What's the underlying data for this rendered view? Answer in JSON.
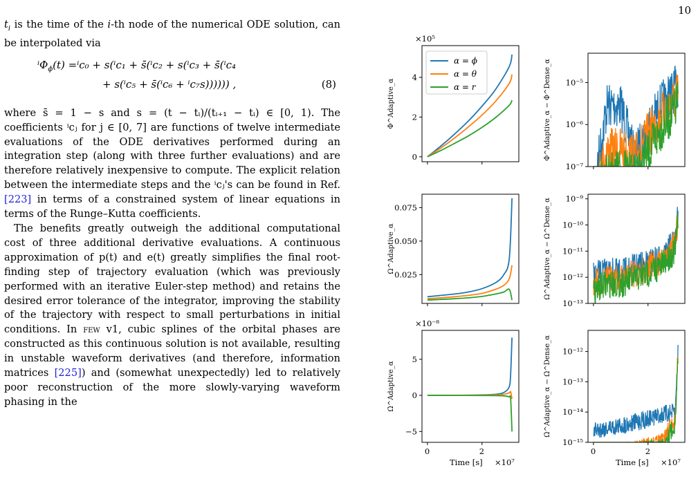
{
  "page_number": "10",
  "text": {
    "p1_a": "t",
    "p1_b": "i",
    "p1_c": " is the time of the ",
    "p1_d": "i",
    "p1_e": "-th node of the numerical ODE solution, can be interpolated via",
    "eq_line1": "ⁱΦ",
    "eq_line1_sub": "ϕ",
    "eq_line1_rest": "(t) =ⁱc₀ + s(ⁱc₁ + s̄(ⁱc₂ + s(ⁱc₃ + s̄(ⁱc₄",
    "eq_line2": "+ s(ⁱc₅ + s̄(ⁱc₆ + ⁱc₇s)))))) ,",
    "eq_number": "(8)",
    "p2": "where s̄ = 1 − s and s = (t − tᵢ)/(tᵢ₊₁ − tᵢ) ∈ [0, 1). The coefficients ⁱcⱼ for j ∈ [0, 7] are functions of twelve intermediate evaluations of the ODE derivatives performed during an integration step (along with three further evaluations) and are therefore relatively inexpensive to compute. The explicit relation between the intermediate steps and the ⁱcⱼ's can be found in Ref. ",
    "p2_cite": "[223]",
    "p2_end": " in terms of a constrained system of linear equations in terms of the Runge–Kutta coefficients.",
    "p3_a": "The benefits greatly outweigh the additional computational cost of three additional derivative evaluations. A continuous approximation of p(t) and e(t) greatly simplifies the final root-finding step of trajectory evaluation (which was previously performed with an iterative Euler-step method) and retains the desired error tolerance of the integrator, improving the stability of the trajectory with respect to small perturbations in initial conditions. In ",
    "p3_few": "few",
    "p3_b": " v1, cubic splines of the orbital phases are constructed as this continuous solution is not available, resulting in unstable waveform derivatives (and therefore, information matrices ",
    "p3_cite": "[225]",
    "p3_c": ") and (somewhat unexpectedly) led to relatively poor reconstruction of the more slowly-varying waveform phasing in the"
  },
  "figure": {
    "colors": {
      "phi": "#1f77b4",
      "theta": "#ff7f0e",
      "r": "#2ca02c"
    },
    "legend": [
      "α = ϕ",
      "α = θ",
      "α = r"
    ],
    "xlabel": "Time [s]",
    "xscale_label": "×10⁷",
    "top_left_scale": "×10⁵",
    "bottom_left_scale": "×10⁻⁸",
    "ylabels": {
      "phi_adaptive": "Φ^Adaptive_α",
      "phi_diff": "Φ^Adaptive_α − Φ^Dense_α",
      "omega_adaptive": "Ω^Adaptive_α",
      "omega_diff": "Ω^Adaptive_α − Ω^Dense_α",
      "omegadot_adaptive": "Ω̇^Adaptive_α",
      "omegadot_diff": "Ω̇^Adaptive_α − Ω̇^Dense_α"
    },
    "x_ticks": [
      "0",
      "2"
    ],
    "top_left_yticks": [
      "0",
      "2",
      "4"
    ],
    "top_right_yticks": [
      "10⁻⁵",
      "10⁻⁶",
      "10⁻⁷"
    ],
    "mid_left_yticks": [
      "0.075",
      "0.050",
      "0.025"
    ],
    "mid_right_yticks": [
      "10⁻⁹",
      "10⁻¹⁰",
      "10⁻¹¹",
      "10⁻¹²",
      "10⁻¹³"
    ]
  },
  "chart_data": [
    {
      "type": "line",
      "title": "",
      "xlabel": "",
      "ylabel": "Φ^Adaptive_α",
      "y_multiplier": "×10⁵",
      "xlim": [
        -0.2,
        3.35
      ],
      "ylim": [
        -0.25,
        5.6
      ],
      "x": [
        0,
        0.5,
        1.0,
        1.5,
        2.0,
        2.5,
        3.0,
        3.1
      ],
      "series": [
        {
          "name": "α = ϕ",
          "values": [
            0,
            0.55,
            1.15,
            1.8,
            2.55,
            3.4,
            4.55,
            5.15
          ]
        },
        {
          "name": "α = θ",
          "values": [
            0,
            0.45,
            0.95,
            1.5,
            2.1,
            2.8,
            3.7,
            4.15
          ]
        },
        {
          "name": "α = r",
          "values": [
            0,
            0.32,
            0.68,
            1.05,
            1.48,
            1.98,
            2.6,
            2.85
          ]
        }
      ]
    },
    {
      "type": "line",
      "title": "",
      "xlabel": "",
      "ylabel": "Φ^Adaptive_α − Φ^Dense_α",
      "y_scale": "log",
      "xlim": [
        -0.2,
        3.35
      ],
      "ylim": [
        1e-07,
        5e-05
      ],
      "x": [
        0,
        0.5,
        1.0,
        1.5,
        2.0,
        2.5,
        3.0,
        3.1
      ],
      "series": [
        {
          "name": "α = ϕ",
          "values": [
            1e-07,
            1e-05,
            1e-05,
            6e-07,
            3e-06,
            1.1e-05,
            2.5e-05,
            3e-05
          ]
        },
        {
          "name": "α = θ",
          "values": [
            1e-07,
            8e-07,
            9e-07,
            6e-07,
            2e-06,
            6e-06,
            1.5e-05,
            2e-05
          ]
        },
        {
          "name": "α = r",
          "values": [
            1e-07,
            2e-07,
            3e-07,
            2e-07,
            7e-07,
            3e-06,
            8e-06,
            1.5e-05
          ]
        }
      ]
    },
    {
      "type": "line",
      "title": "",
      "xlabel": "",
      "ylabel": "Ω^Adaptive_α",
      "xlim": [
        -0.2,
        3.35
      ],
      "ylim": [
        0.0035,
        0.085
      ],
      "x": [
        0,
        0.5,
        1.0,
        1.5,
        2.0,
        2.5,
        2.8,
        3.0,
        3.1
      ],
      "series": [
        {
          "name": "α = ϕ",
          "values": [
            0.0085,
            0.0095,
            0.0105,
            0.012,
            0.0145,
            0.019,
            0.025,
            0.037,
            0.082
          ]
        },
        {
          "name": "α = θ",
          "values": [
            0.007,
            0.0077,
            0.0085,
            0.0095,
            0.011,
            0.014,
            0.017,
            0.022,
            0.032
          ]
        },
        {
          "name": "α = r",
          "values": [
            0.006,
            0.0065,
            0.007,
            0.0077,
            0.0087,
            0.0105,
            0.012,
            0.014,
            0.006
          ]
        }
      ]
    },
    {
      "type": "line",
      "title": "",
      "xlabel": "",
      "ylabel": "Ω^Adaptive_α − Ω^Dense_α",
      "y_scale": "log",
      "xlim": [
        -0.2,
        3.35
      ],
      "ylim": [
        1e-13,
        1.5e-09
      ],
      "x": [
        0,
        0.5,
        1.0,
        1.5,
        2.0,
        2.5,
        3.0,
        3.1
      ],
      "series": [
        {
          "name": "α = ϕ",
          "values": [
            4e-12,
            6e-12,
            5e-12,
            8e-12,
            1.2e-11,
            2e-11,
            8e-11,
            1e-09
          ]
        },
        {
          "name": "α = θ",
          "values": [
            2e-12,
            3e-12,
            3e-12,
            5e-12,
            8e-12,
            1.5e-11,
            6e-11,
            8e-10
          ]
        },
        {
          "name": "α = r",
          "values": [
            1e-12,
            2e-12,
            2e-12,
            3e-12,
            5e-12,
            1e-11,
            4e-11,
            6e-10
          ]
        }
      ]
    },
    {
      "type": "line",
      "title": "",
      "xlabel": "Time [s]",
      "ylabel": "Ω̇^Adaptive_α",
      "y_multiplier": "×10⁻⁸",
      "xlim": [
        -0.2,
        3.35
      ],
      "ylim": [
        -6.5,
        9
      ],
      "x_tick_multiplier": "×10⁷",
      "x": [
        0,
        1.0,
        2.0,
        2.5,
        2.8,
        3.0,
        3.05,
        3.1
      ],
      "series": [
        {
          "name": "α = ϕ",
          "values": [
            0,
            0.02,
            0.06,
            0.15,
            0.4,
            1.2,
            3.0,
            8.0
          ]
        },
        {
          "name": "α = θ",
          "values": [
            0,
            0.01,
            0.03,
            0.07,
            0.15,
            0.35,
            0.5,
            -0.5
          ]
        },
        {
          "name": "α = r",
          "values": [
            0,
            0.0,
            -0.01,
            -0.03,
            -0.07,
            -0.2,
            -0.5,
            -5.0
          ]
        }
      ]
    },
    {
      "type": "line",
      "title": "",
      "xlabel": "Time [s]",
      "ylabel": "Ω̇^Adaptive_α − Ω̇^Dense_α",
      "y_scale": "log",
      "x_tick_multiplier": "×10⁷",
      "xlim": [
        -0.2,
        3.35
      ],
      "ylim": [
        1e-15,
        5e-12
      ],
      "x": [
        0,
        0.5,
        1.0,
        1.5,
        2.0,
        2.5,
        3.0,
        3.1
      ],
      "series": [
        {
          "name": "α = ϕ",
          "values": [
            5e-15,
            6e-15,
            7e-15,
            9e-15,
            1.2e-14,
            1.6e-14,
            2e-14,
            3e-12
          ]
        },
        {
          "name": "α = θ",
          "values": [
            1e-15,
            1e-15,
            1e-15,
            1.2e-15,
            1.5e-15,
            2e-15,
            1.2e-14,
            2.5e-12
          ]
        },
        {
          "name": "α = r",
          "values": [
            1e-15,
            1e-15,
            1e-15,
            1e-15,
            1.2e-15,
            1.5e-15,
            8e-15,
            1.5e-12
          ]
        }
      ]
    }
  ]
}
